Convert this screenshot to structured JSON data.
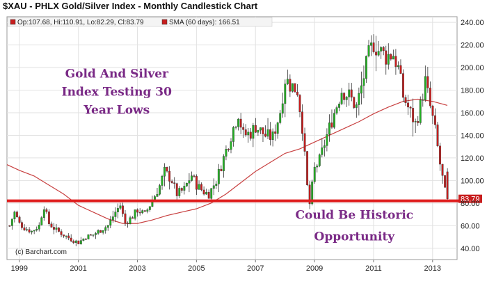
{
  "title": "$XAU - PHLX Gold/Silver Index - Monthly Candlestick Chart",
  "credit": "(c) Barchart.com",
  "colors": {
    "up": "#22b022",
    "down": "#c81e1e",
    "sma": "#c84040",
    "support": "#e01e1e",
    "annotation": "#7a2a86",
    "plot_bg": "#ffffff",
    "frame": "#999999"
  },
  "chart_data": {
    "type": "candlestick",
    "title": "$XAU - PHLX Gold/Silver Index - Monthly Candlestick Chart",
    "ylim": [
      30,
      245
    ],
    "yticks": [
      40,
      60,
      80,
      100,
      120,
      140,
      160,
      180,
      200,
      220,
      240
    ],
    "ytick_labels": [
      "40.00",
      "60.00",
      "80.00",
      "100.00",
      "120.00",
      "140.00",
      "160.00",
      "180.00",
      "200.00",
      "220.00",
      "240.00"
    ],
    "xlim": [
      1998.58,
      2013.83
    ],
    "xticks": [
      1999,
      2001,
      2003,
      2005,
      2007,
      2009,
      2011,
      2013
    ],
    "xtick_labels": [
      "1999",
      "2001",
      "2003",
      "2005",
      "2007",
      "2009",
      "2011",
      "2013"
    ],
    "grid": true,
    "legend": [
      {
        "label": "Op:107.68, Hi:110.91, Lo:82.29, Cl:83.79",
        "color": "#c81e1e"
      },
      {
        "label": "SMA (60 days): 166.51",
        "color": "#c81e1e"
      }
    ],
    "last_price_label": "83.79",
    "support_level": 82,
    "close_anchors": [
      [
        1998.67,
        60
      ],
      [
        1998.83,
        72
      ],
      [
        1999.0,
        62
      ],
      [
        1999.17,
        58
      ],
      [
        1999.42,
        55
      ],
      [
        1999.67,
        60
      ],
      [
        1999.83,
        78
      ],
      [
        2000.0,
        62
      ],
      [
        2000.25,
        56
      ],
      [
        2000.5,
        52
      ],
      [
        2000.75,
        48
      ],
      [
        2001.0,
        45
      ],
      [
        2001.25,
        50
      ],
      [
        2001.5,
        52
      ],
      [
        2001.75,
        56
      ],
      [
        2002.0,
        60
      ],
      [
        2002.25,
        72
      ],
      [
        2002.42,
        78
      ],
      [
        2002.58,
        62
      ],
      [
        2002.83,
        68
      ],
      [
        2003.0,
        74
      ],
      [
        2003.25,
        70
      ],
      [
        2003.5,
        82
      ],
      [
        2003.75,
        95
      ],
      [
        2003.92,
        108
      ],
      [
        2004.17,
        100
      ],
      [
        2004.33,
        88
      ],
      [
        2004.58,
        92
      ],
      [
        2004.83,
        105
      ],
      [
        2005.0,
        96
      ],
      [
        2005.25,
        90
      ],
      [
        2005.42,
        88
      ],
      [
        2005.67,
        100
      ],
      [
        2005.92,
        120
      ],
      [
        2006.17,
        140
      ],
      [
        2006.42,
        160
      ],
      [
        2006.58,
        140
      ],
      [
        2006.83,
        142
      ],
      [
        2007.0,
        148
      ],
      [
        2007.33,
        140
      ],
      [
        2007.58,
        138
      ],
      [
        2007.83,
        160
      ],
      [
        2008.0,
        190
      ],
      [
        2008.17,
        185
      ],
      [
        2008.42,
        180
      ],
      [
        2008.58,
        150
      ],
      [
        2008.75,
        95
      ],
      [
        2008.83,
        78
      ],
      [
        2009.0,
        110
      ],
      [
        2009.17,
        118
      ],
      [
        2009.42,
        140
      ],
      [
        2009.67,
        160
      ],
      [
        2009.92,
        180
      ],
      [
        2010.17,
        175
      ],
      [
        2010.42,
        165
      ],
      [
        2010.58,
        182
      ],
      [
        2010.83,
        210
      ],
      [
        2011.0,
        222
      ],
      [
        2011.17,
        215
      ],
      [
        2011.42,
        210
      ],
      [
        2011.67,
        212
      ],
      [
        2011.83,
        200
      ],
      [
        2012.0,
        175
      ],
      [
        2012.25,
        160
      ],
      [
        2012.42,
        150
      ],
      [
        2012.58,
        165
      ],
      [
        2012.75,
        188
      ],
      [
        2012.92,
        165
      ],
      [
        2013.08,
        145
      ],
      [
        2013.25,
        115
      ],
      [
        2013.42,
        90
      ],
      [
        2013.5,
        84
      ]
    ],
    "sma_series": [
      [
        1998.58,
        114
      ],
      [
        1999.0,
        109
      ],
      [
        1999.5,
        104
      ],
      [
        2000.0,
        96
      ],
      [
        2000.5,
        88
      ],
      [
        2001.0,
        78
      ],
      [
        2001.5,
        72
      ],
      [
        2002.0,
        66
      ],
      [
        2002.5,
        62
      ],
      [
        2003.0,
        62
      ],
      [
        2003.5,
        65
      ],
      [
        2004.0,
        69
      ],
      [
        2004.5,
        72
      ],
      [
        2005.0,
        75
      ],
      [
        2005.5,
        80
      ],
      [
        2006.0,
        88
      ],
      [
        2006.5,
        98
      ],
      [
        2007.0,
        108
      ],
      [
        2007.5,
        116
      ],
      [
        2008.0,
        124
      ],
      [
        2008.5,
        128
      ],
      [
        2009.0,
        134
      ],
      [
        2009.5,
        140
      ],
      [
        2010.0,
        146
      ],
      [
        2010.5,
        152
      ],
      [
        2011.0,
        159
      ],
      [
        2011.5,
        165
      ],
      [
        2012.0,
        170
      ],
      [
        2012.5,
        172
      ],
      [
        2013.0,
        170
      ],
      [
        2013.5,
        166.51
      ]
    ],
    "annotations": [
      {
        "text": "Gold And Silver",
        "x": 2002.3,
        "y": 191
      },
      {
        "text": "Index Testing 30",
        "x": 2002.3,
        "y": 175
      },
      {
        "text": "Year Lows",
        "x": 2002.3,
        "y": 159
      },
      {
        "text": "Could Be Historic",
        "x": 2010.35,
        "y": 66
      },
      {
        "text": "Opportunity",
        "x": 2010.35,
        "y": 47
      }
    ]
  }
}
